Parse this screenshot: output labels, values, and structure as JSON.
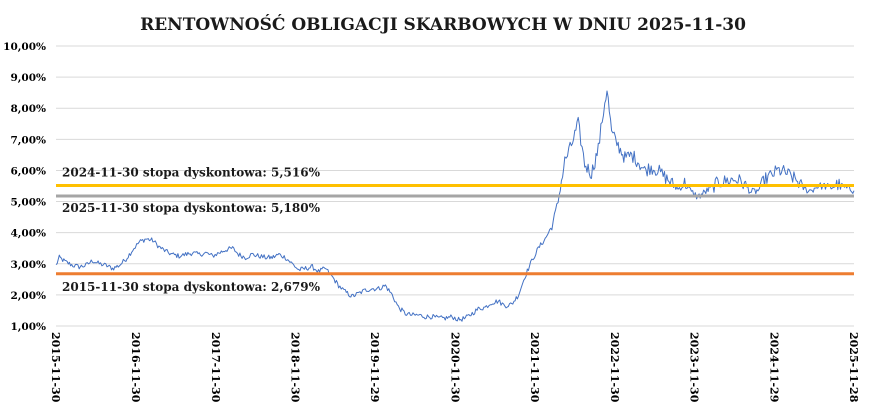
{
  "chart_data": {
    "type": "line",
    "title": "RENTOWNOŚĆ OBLIGACJI SKARBOWYCH W DNIU 2025-11-30",
    "xlabel": "",
    "ylabel": "",
    "x_ticks": [
      "2015-11-30",
      "2016-11-30",
      "2017-11-30",
      "2018-11-30",
      "2019-11-29",
      "2020-11-30",
      "2021-11-30",
      "2022-11-30",
      "2023-11-30",
      "2024-11-29",
      "2025-11-28"
    ],
    "y_ticks": [
      "1,00%",
      "2,00%",
      "3,00%",
      "4,00%",
      "5,00%",
      "6,00%",
      "7,00%",
      "8,00%",
      "9,00%",
      "10,00%"
    ],
    "ylim": [
      1.0,
      10.0
    ],
    "xlim": [
      "2015-11-30",
      "2025-11-28"
    ],
    "grid": "horizontal",
    "series": [
      {
        "color": "#4472c4",
        "points": [
          [
            "2015-11-30",
            2.95
          ],
          [
            "2015-12-15",
            3.2
          ],
          [
            "2016-01-15",
            3.05
          ],
          [
            "2016-02-15",
            2.95
          ],
          [
            "2016-03-15",
            2.9
          ],
          [
            "2016-04-15",
            2.95
          ],
          [
            "2016-05-15",
            3.1
          ],
          [
            "2016-06-15",
            3.0
          ],
          [
            "2016-07-15",
            2.95
          ],
          [
            "2016-08-15",
            2.85
          ],
          [
            "2016-09-15",
            2.95
          ],
          [
            "2016-10-15",
            3.15
          ],
          [
            "2016-11-15",
            3.45
          ],
          [
            "2016-12-15",
            3.7
          ],
          [
            "2017-01-15",
            3.8
          ],
          [
            "2017-02-15",
            3.75
          ],
          [
            "2017-03-15",
            3.55
          ],
          [
            "2017-04-15",
            3.4
          ],
          [
            "2017-05-15",
            3.3
          ],
          [
            "2017-06-15",
            3.25
          ],
          [
            "2017-07-15",
            3.3
          ],
          [
            "2017-08-15",
            3.35
          ],
          [
            "2017-09-15",
            3.3
          ],
          [
            "2017-10-15",
            3.35
          ],
          [
            "2017-11-15",
            3.25
          ],
          [
            "2017-12-15",
            3.35
          ],
          [
            "2018-01-15",
            3.45
          ],
          [
            "2018-02-15",
            3.5
          ],
          [
            "2018-03-15",
            3.3
          ],
          [
            "2018-04-15",
            3.2
          ],
          [
            "2018-05-15",
            3.3
          ],
          [
            "2018-06-15",
            3.25
          ],
          [
            "2018-07-15",
            3.2
          ],
          [
            "2018-08-15",
            3.2
          ],
          [
            "2018-09-15",
            3.3
          ],
          [
            "2018-10-15",
            3.2
          ],
          [
            "2018-11-15",
            3.0
          ],
          [
            "2018-12-15",
            2.8
          ],
          [
            "2019-01-15",
            2.85
          ],
          [
            "2019-02-15",
            2.9
          ],
          [
            "2019-03-15",
            2.75
          ],
          [
            "2019-04-15",
            2.85
          ],
          [
            "2019-05-15",
            2.6
          ],
          [
            "2019-06-15",
            2.3
          ],
          [
            "2019-07-15",
            2.1
          ],
          [
            "2019-08-15",
            1.95
          ],
          [
            "2019-09-15",
            2.05
          ],
          [
            "2019-10-15",
            2.15
          ],
          [
            "2019-11-15",
            2.2
          ],
          [
            "2019-12-15",
            2.2
          ],
          [
            "2020-01-15",
            2.3
          ],
          [
            "2020-02-15",
            2.0
          ],
          [
            "2020-03-15",
            1.6
          ],
          [
            "2020-04-15",
            1.4
          ],
          [
            "2020-05-15",
            1.35
          ],
          [
            "2020-06-15",
            1.35
          ],
          [
            "2020-07-15",
            1.3
          ],
          [
            "2020-08-15",
            1.3
          ],
          [
            "2020-09-15",
            1.25
          ],
          [
            "2020-10-15",
            1.25
          ],
          [
            "2020-11-15",
            1.3
          ],
          [
            "2020-12-15",
            1.2
          ],
          [
            "2021-01-15",
            1.25
          ],
          [
            "2021-02-15",
            1.4
          ],
          [
            "2021-03-15",
            1.55
          ],
          [
            "2021-04-15",
            1.6
          ],
          [
            "2021-05-15",
            1.75
          ],
          [
            "2021-06-15",
            1.8
          ],
          [
            "2021-07-15",
            1.65
          ],
          [
            "2021-08-15",
            1.7
          ],
          [
            "2021-09-15",
            2.0
          ],
          [
            "2021-10-15",
            2.6
          ],
          [
            "2021-11-15",
            3.1
          ],
          [
            "2021-12-15",
            3.5
          ],
          [
            "2022-01-15",
            3.8
          ],
          [
            "2022-02-15",
            4.2
          ],
          [
            "2022-03-15",
            5.0
          ],
          [
            "2022-04-15",
            6.3
          ],
          [
            "2022-05-15",
            6.8
          ],
          [
            "2022-06-15",
            7.5
          ],
          [
            "2022-07-15",
            6.2
          ],
          [
            "2022-08-15",
            5.9
          ],
          [
            "2022-09-15",
            6.7
          ],
          [
            "2022-10-15",
            8.2
          ],
          [
            "2022-10-25",
            8.6
          ],
          [
            "2022-11-15",
            7.2
          ],
          [
            "2022-12-15",
            6.8
          ],
          [
            "2023-01-15",
            6.4
          ],
          [
            "2023-02-15",
            6.5
          ],
          [
            "2023-03-15",
            6.3
          ],
          [
            "2023-04-15",
            6.0
          ],
          [
            "2023-05-15",
            6.1
          ],
          [
            "2023-06-15",
            6.0
          ],
          [
            "2023-07-15",
            5.8
          ],
          [
            "2023-08-15",
            5.6
          ],
          [
            "2023-09-15",
            5.4
          ],
          [
            "2023-10-15",
            5.6
          ],
          [
            "2023-11-15",
            5.3
          ],
          [
            "2023-12-15",
            5.15
          ],
          [
            "2024-01-15",
            5.3
          ],
          [
            "2024-02-15",
            5.45
          ],
          [
            "2024-03-15",
            5.6
          ],
          [
            "2024-04-15",
            5.65
          ],
          [
            "2024-05-15",
            5.7
          ],
          [
            "2024-06-15",
            5.7
          ],
          [
            "2024-07-15",
            5.55
          ],
          [
            "2024-08-15",
            5.3
          ],
          [
            "2024-09-15",
            5.35
          ],
          [
            "2024-10-15",
            5.7
          ],
          [
            "2024-11-15",
            5.85
          ],
          [
            "2024-12-15",
            6.0
          ],
          [
            "2025-01-15",
            5.95
          ],
          [
            "2025-02-15",
            5.8
          ],
          [
            "2025-03-15",
            5.65
          ],
          [
            "2025-04-15",
            5.4
          ],
          [
            "2025-05-15",
            5.35
          ],
          [
            "2025-06-15",
            5.5
          ],
          [
            "2025-07-15",
            5.5
          ],
          [
            "2025-08-15",
            5.45
          ],
          [
            "2025-09-15",
            5.55
          ],
          [
            "2025-10-15",
            5.45
          ],
          [
            "2025-11-28",
            5.35
          ]
        ]
      }
    ],
    "reference_lines": [
      {
        "label": "2024-11-30 stopa dyskontowa: 5,516%",
        "value": 5.516,
        "color": "#ffc000"
      },
      {
        "label": "2025-11-30 stopa dyskontowa: 5,180%",
        "value": 5.18,
        "color": "#a5a5a5"
      },
      {
        "label": "2015-11-30 stopa dyskontowa: 2,679%",
        "value": 2.679,
        "color": "#ed7d31"
      }
    ]
  }
}
